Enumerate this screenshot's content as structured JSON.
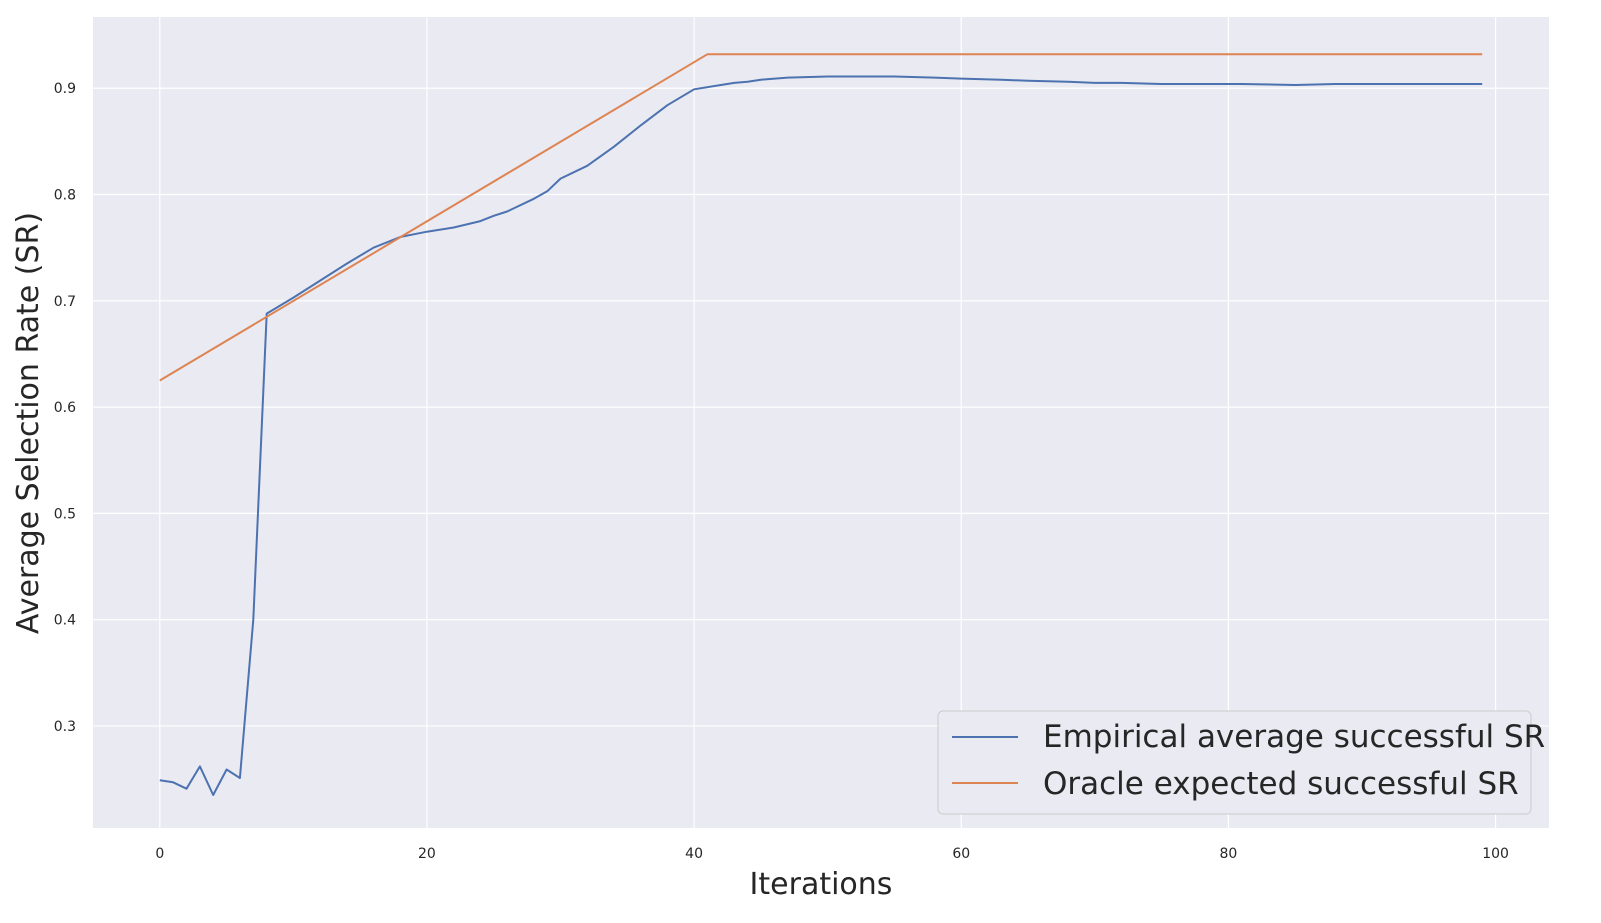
{
  "chart_data": {
    "type": "line",
    "title": "",
    "xlabel": "Iterations",
    "ylabel": "Average Selection Rate (SR)",
    "xlim": [
      -5,
      104
    ],
    "ylim": [
      0.204,
      0.967
    ],
    "x_ticks": [
      0,
      20,
      40,
      60,
      80,
      100
    ],
    "y_ticks": [
      0.3,
      0.4,
      0.5,
      0.6,
      0.7,
      0.8,
      0.9
    ],
    "grid": true,
    "legend_position": "lower right",
    "series": [
      {
        "name": "Empirical average successful SR",
        "color": "#4c72b0",
        "x": [
          0,
          1,
          2,
          3,
          4,
          5,
          6,
          7,
          8,
          10,
          12,
          14,
          16,
          18,
          20,
          22,
          24,
          25,
          26,
          28,
          29,
          30,
          32,
          34,
          36,
          38,
          40,
          42,
          43,
          44,
          45,
          47,
          50,
          53,
          55,
          58,
          60,
          63,
          65,
          68,
          70,
          72,
          75,
          78,
          81,
          85,
          88,
          90,
          92,
          95,
          97,
          99
        ],
        "y": [
          0.249,
          0.247,
          0.241,
          0.262,
          0.235,
          0.259,
          0.251,
          0.4,
          0.688,
          0.703,
          0.719,
          0.735,
          0.75,
          0.76,
          0.765,
          0.769,
          0.775,
          0.78,
          0.784,
          0.796,
          0.803,
          0.815,
          0.827,
          0.845,
          0.865,
          0.884,
          0.899,
          0.903,
          0.905,
          0.906,
          0.908,
          0.91,
          0.911,
          0.911,
          0.911,
          0.91,
          0.909,
          0.908,
          0.907,
          0.906,
          0.905,
          0.905,
          0.904,
          0.904,
          0.904,
          0.903,
          0.904,
          0.904,
          0.904,
          0.904,
          0.904,
          0.904
        ]
      },
      {
        "name": "Oracle expected successful SR",
        "color": "#dd8452",
        "x": [
          0,
          41,
          99
        ],
        "y": [
          0.625,
          0.932,
          0.932
        ]
      }
    ]
  }
}
